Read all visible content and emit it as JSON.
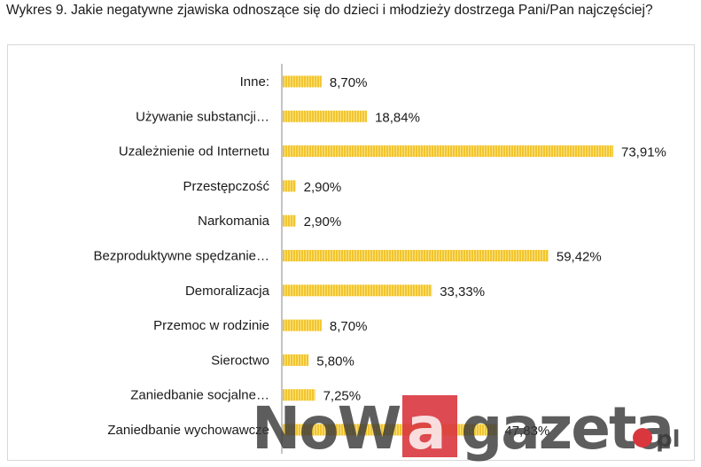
{
  "caption": "Wykres 9. Jakie negatywne zjawiska odnoszące się do dzieci i młodzieży dostrzega Pani/Pan najczęściej?",
  "colors": {
    "bar": "#f2c531",
    "bar_stripe": "#fbe27a",
    "axis": "#b0b0b0",
    "watermark": "#3a3a3a",
    "watermark_accent": "#d9363e"
  },
  "watermark": {
    "prefix": "NoW",
    "accent": "a",
    "suffix": "gazeta",
    "dot": ".",
    "tld": "pl"
  },
  "chart_data": {
    "type": "bar",
    "orientation": "horizontal",
    "categories": [
      "Inne:",
      "Używanie substancji…",
      "Uzależnienie od Internetu",
      "Przestępczość",
      "Narkomania",
      "Bezproduktywne spędzanie…",
      "Demoralizacja",
      "Przemoc w rodzinie",
      "Sieroctwo",
      "Zaniedbanie socjalne…",
      "Zaniedbanie wychowawcze"
    ],
    "values": [
      8.7,
      18.84,
      73.91,
      2.9,
      2.9,
      59.42,
      33.33,
      8.7,
      5.8,
      7.25,
      47.83
    ],
    "value_labels": [
      "8,70%",
      "18,84%",
      "73,91%",
      "2,90%",
      "2,90%",
      "59,42%",
      "33,33%",
      "8,70%",
      "5,80%",
      "7,25%",
      "47,83%"
    ],
    "xlim": [
      0,
      80
    ],
    "grid": false,
    "legend": "none"
  }
}
